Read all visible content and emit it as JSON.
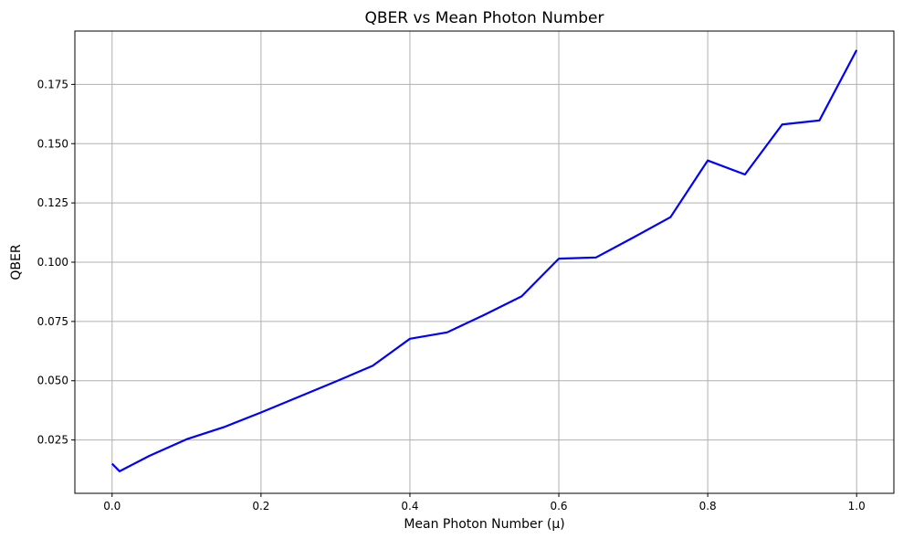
{
  "chart_data": {
    "type": "line",
    "title": "QBER vs Mean Photon Number",
    "xlabel": "Mean Photon Number (μ)",
    "ylabel": "QBER",
    "xlim": [
      -0.05,
      1.05
    ],
    "ylim": [
      0.0025,
      0.1975
    ],
    "grid": true,
    "x_ticks": [
      0.0,
      0.2,
      0.4,
      0.6,
      0.8,
      1.0
    ],
    "x_tick_labels": [
      "0.0",
      "0.2",
      "0.4",
      "0.6",
      "0.8",
      "1.0"
    ],
    "y_ticks": [
      0.025,
      0.05,
      0.075,
      0.1,
      0.125,
      0.15,
      0.175
    ],
    "y_tick_labels": [
      "0.025",
      "0.050",
      "0.075",
      "0.100",
      "0.125",
      "0.150",
      "0.175"
    ],
    "series": [
      {
        "color": "#0000ff",
        "x": [
          0.0,
          0.01,
          0.05,
          0.1,
          0.15,
          0.2,
          0.25,
          0.3,
          0.35,
          0.4,
          0.45,
          0.5,
          0.55,
          0.6,
          0.65,
          0.7,
          0.75,
          0.8,
          0.85,
          0.9,
          0.95,
          1.0
        ],
        "y": [
          0.015,
          0.0118,
          0.0183,
          0.0253,
          0.0304,
          0.0366,
          0.0431,
          0.0496,
          0.0563,
          0.0677,
          0.0704,
          0.0778,
          0.0856,
          0.1015,
          0.102,
          0.1104,
          0.119,
          0.1429,
          0.137,
          0.1581,
          0.1598,
          0.1895
        ]
      }
    ]
  }
}
